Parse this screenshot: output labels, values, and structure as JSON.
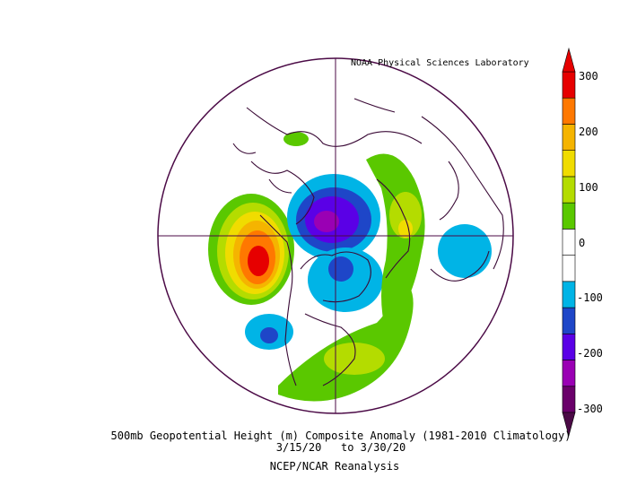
{
  "credit": "NOAA Physical Sciences Laboratory",
  "title": "500mb Geopotential Height (m) Composite Anomaly (1981-2010 Climatology)",
  "date_range": "3/15/20   to 3/30/20",
  "source": "NCEP/NCAR Reanalysis",
  "colorbar": {
    "ticks": [
      "300",
      "200",
      "100",
      "0",
      "-100",
      "-200",
      "-300"
    ],
    "colors": [
      "#6a006a",
      "#9a00b4",
      "#5a00e6",
      "#1e46c8",
      "#00b4e6",
      "#ffffff",
      "#ffffff",
      "#5ac800",
      "#b4dc00",
      "#f0dc00",
      "#f5b400",
      "#ff7800",
      "#e60000"
    ]
  },
  "map": {
    "boundary_color": "#4b0a46",
    "projection": "north-polar-stereographic"
  }
}
